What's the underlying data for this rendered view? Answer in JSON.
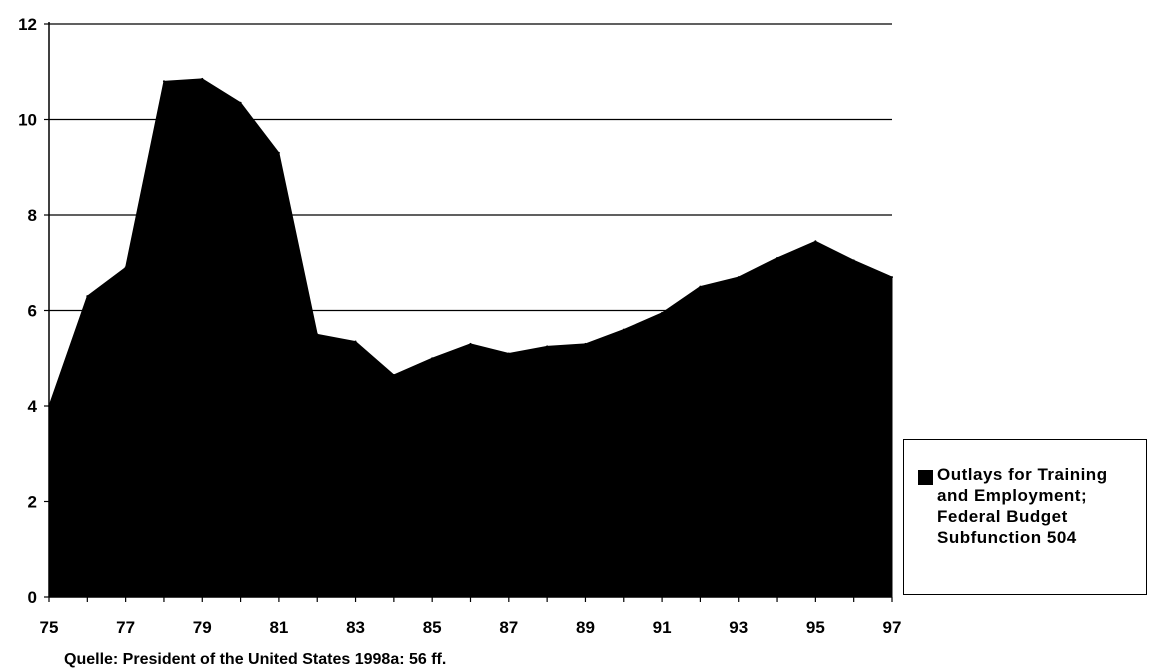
{
  "chart_data": {
    "type": "area",
    "x": [
      75,
      76,
      77,
      78,
      79,
      80,
      81,
      82,
      83,
      84,
      85,
      86,
      87,
      88,
      89,
      90,
      91,
      92,
      93,
      94,
      95,
      96,
      97
    ],
    "series": [
      {
        "name": "Outlays for Training and Employment; Federal Budget Subfunction 504",
        "values": [
          4.0,
          6.3,
          6.9,
          10.8,
          10.85,
          10.35,
          9.3,
          5.5,
          5.35,
          4.65,
          5.0,
          5.3,
          5.1,
          5.25,
          5.3,
          5.6,
          5.95,
          6.5,
          6.7,
          7.1,
          7.45,
          7.05,
          6.7
        ],
        "color": "#000000"
      }
    ],
    "xticks": [
      "75",
      "77",
      "79",
      "81",
      "83",
      "85",
      "87",
      "89",
      "91",
      "93",
      "95",
      "97"
    ],
    "yticks": [
      "0",
      "2",
      "4",
      "6",
      "8",
      "10",
      "12"
    ],
    "ylim": [
      0,
      12
    ],
    "xlim": [
      75,
      97
    ],
    "grid": "horizontal",
    "legend_position": "right",
    "title": "",
    "xlabel": "",
    "ylabel": ""
  },
  "legend": {
    "label": "Outlays for Training\nand Employment;\nFederal Budget\nSubfunction 504"
  },
  "source_note": "Quelle: President of the United States 1998a: 56 ff."
}
